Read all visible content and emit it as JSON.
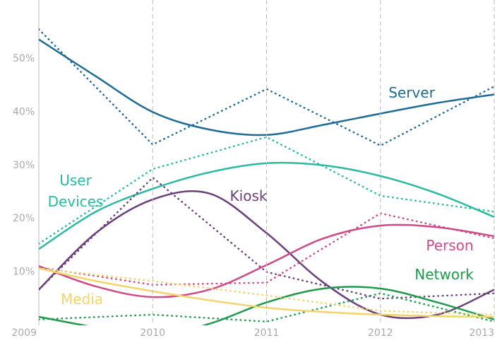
{
  "chart_data": {
    "type": "line",
    "x": [
      2009,
      2010,
      2011,
      2012,
      2013
    ],
    "trend_x": [
      2009,
      2009.5,
      2010,
      2010.5,
      2011,
      2011.5,
      2012,
      2012.5,
      2013
    ],
    "xlim": [
      2009,
      2013
    ],
    "xticks": [
      2009,
      2010,
      2011,
      2012,
      2013
    ],
    "ylim": [
      0,
      61
    ],
    "yticks": [
      {
        "value": 10,
        "label": "10%"
      },
      {
        "value": 20,
        "label": "20%"
      },
      {
        "value": 30,
        "label": "30%"
      },
      {
        "value": 40,
        "label": "40%"
      },
      {
        "value": 50,
        "label": "50%"
      }
    ],
    "grid": true,
    "series": [
      {
        "name": "Server",
        "color": "#1f6b94",
        "values": [
          55.5,
          33.9,
          44.3,
          33.7,
          44.8
        ],
        "trend": [
          53.6,
          46.7,
          40,
          36.7,
          35.7,
          37.6,
          39.7,
          41.7,
          43.3
        ]
      },
      {
        "name": "User Devices",
        "color": "#2bb9a0",
        "values": [
          15.3,
          29.3,
          35.3,
          24.3,
          21.3
        ],
        "trend": [
          14.3,
          21.3,
          25.6,
          28.7,
          30.4,
          30,
          28,
          24.7,
          20.3
        ]
      },
      {
        "name": "Kiosk",
        "color": "#6b3f7c",
        "values": [
          6.7,
          27.7,
          10,
          5,
          6
        ],
        "trend": [
          6.7,
          17.3,
          23.6,
          24.7,
          17.3,
          8,
          2,
          2,
          6.7
        ]
      },
      {
        "name": "Person",
        "color": "#cc4a85",
        "values": [
          10.9,
          7.6,
          8,
          21,
          16.3
        ],
        "trend": [
          11.1,
          7.3,
          5.3,
          6.7,
          11.3,
          16.3,
          18.7,
          18.4,
          16.7
        ]
      },
      {
        "name": "Network",
        "color": "#1f9a4c",
        "values": [
          1.1,
          2,
          0.7,
          6,
          0.7
        ],
        "trend": [
          1.6,
          -0.4,
          -2,
          0.3,
          4.3,
          6.9,
          6.9,
          4.3,
          1.1
        ]
      },
      {
        "name": "Media",
        "color": "#f2d46b",
        "values": [
          10.7,
          8.3,
          5.6,
          2.7,
          2
        ],
        "trend": [
          10.7,
          8.3,
          6.4,
          4.7,
          3.3,
          2.5,
          2,
          1.7,
          1.6
        ]
      }
    ]
  }
}
